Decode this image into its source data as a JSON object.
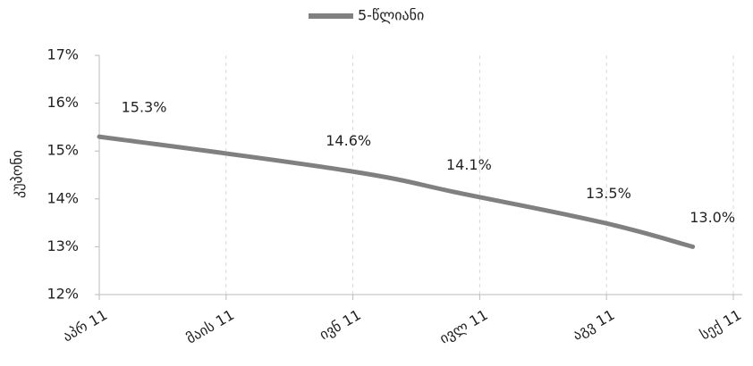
{
  "chart_data": {
    "type": "line",
    "y_label": "კუპონი",
    "series": [
      {
        "name": "5-წლიანი",
        "color": "#808080",
        "x": [
          0,
          1.93,
          2.88,
          3.98,
          4.68
        ],
        "values": [
          15.3,
          14.6,
          14.1,
          13.5,
          13.0
        ],
        "value_labels": [
          "15.3%",
          "14.6%",
          "14.1%",
          "13.5%",
          "13.0%"
        ]
      }
    ],
    "xlim": [
      0,
      5
    ],
    "xticks": [
      {
        "value": 0,
        "label": "აპრ 11"
      },
      {
        "value": 1,
        "label": "მაის 11"
      },
      {
        "value": 2,
        "label": "ივნ 11"
      },
      {
        "value": 3,
        "label": "ივლ 11"
      },
      {
        "value": 4,
        "label": "აგვ 11"
      },
      {
        "value": 5,
        "label": "სექ 11"
      }
    ],
    "ylim": [
      12,
      17
    ],
    "yticks": [
      {
        "value": 12,
        "label": "12%"
      },
      {
        "value": 13,
        "label": "13%"
      },
      {
        "value": 14,
        "label": "14%"
      },
      {
        "value": 15,
        "label": "15%"
      },
      {
        "value": 16,
        "label": "16%"
      },
      {
        "value": 17,
        "label": "17%"
      }
    ],
    "grid": "x",
    "legend": "top"
  }
}
